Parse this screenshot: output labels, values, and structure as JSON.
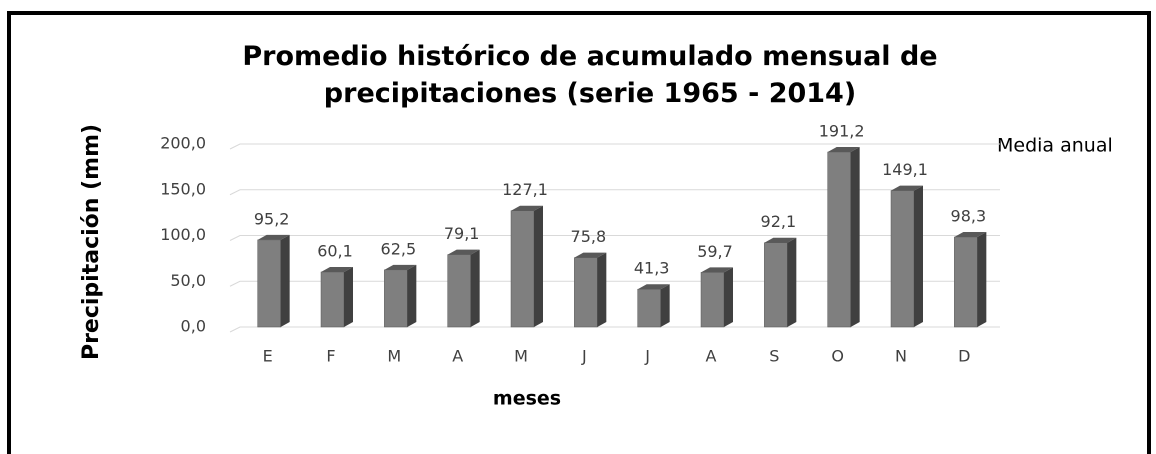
{
  "chart_data": {
    "type": "bar3d",
    "title": "Promedio histórico de acumulado mensual de precipitaciones (serie 1965 - 2014)",
    "x_label": "meses",
    "y_label": "Precipitación (mm)",
    "categories": [
      "E",
      "F",
      "M",
      "A",
      "M",
      "J",
      "J",
      "A",
      "S",
      "O",
      "N",
      "D"
    ],
    "series": [
      {
        "name": "Media anual",
        "color": "#7f7f7f",
        "values": [
          95.2,
          60.1,
          62.5,
          79.1,
          127.1,
          75.8,
          41.3,
          59.7,
          92.1,
          191.2,
          149.1,
          98.3
        ],
        "value_labels": [
          "95,2",
          "60,1",
          "62,5",
          "79,1",
          "127,1",
          "75,8",
          "41,3",
          "59,7",
          "92,1",
          "191,2",
          "149,1",
          "98,3"
        ]
      }
    ],
    "ylim": [
      0,
      200
    ],
    "yticks": [
      {
        "value": 0,
        "label": "0,0"
      },
      {
        "value": 50,
        "label": "50,0"
      },
      {
        "value": 100,
        "label": "100,0"
      },
      {
        "value": 150,
        "label": "150,0"
      },
      {
        "value": 200,
        "label": "200,0"
      }
    ],
    "grid": true
  }
}
